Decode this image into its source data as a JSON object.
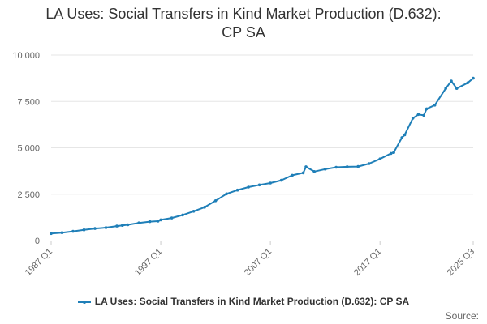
{
  "title_line1": "LA Uses: Social Transfers in Kind Market Production (D.632):",
  "title_line2": "CP SA",
  "source_label": "Source:",
  "colors": {
    "series": "#1f7fb8",
    "grid": "#e6e6e6",
    "axis_text": "#666666"
  },
  "chart_data": {
    "type": "line",
    "title": "LA Uses: Social Transfers in Kind Market Production (D.632): CP SA",
    "xlabel": "",
    "ylabel": "",
    "ylim": [
      0,
      10000
    ],
    "grid": true,
    "legend_position": "bottom",
    "y_ticks": [
      {
        "value": 0,
        "label": "0"
      },
      {
        "value": 2500,
        "label": "2 500"
      },
      {
        "value": 5000,
        "label": "5 000"
      },
      {
        "value": 7500,
        "label": "7 500"
      },
      {
        "value": 10000,
        "label": "10 000"
      }
    ],
    "x_ticks": [
      "1987 Q1",
      "1997 Q1",
      "2007 Q1",
      "2017 Q1",
      "2025 Q3"
    ],
    "series": [
      {
        "name": "LA Uses: Social Transfers in Kind Market Production (D.632): CP SA",
        "x": [
          "1987 Q1",
          "1988 Q1",
          "1989 Q1",
          "1990 Q1",
          "1991 Q1",
          "1992 Q1",
          "1993 Q1",
          "1993 Q3",
          "1994 Q1",
          "1995 Q1",
          "1996 Q1",
          "1996 Q4",
          "1997 Q1",
          "1998 Q1",
          "1999 Q1",
          "2000 Q1",
          "2001 Q1",
          "2002 Q1",
          "2003 Q1",
          "2004 Q1",
          "2005 Q1",
          "2006 Q1",
          "2007 Q1",
          "2008 Q1",
          "2009 Q1",
          "2010 Q1",
          "2010 Q2",
          "2011 Q1",
          "2012 Q1",
          "2013 Q1",
          "2014 Q1",
          "2015 Q1",
          "2016 Q1",
          "2017 Q1",
          "2018 Q1",
          "2018 Q2",
          "2019 Q1",
          "2019 Q2",
          "2020 Q1",
          "2020 Q3",
          "2021 Q1",
          "2021 Q2",
          "2022 Q1",
          "2023 Q1",
          "2023 Q3",
          "2024 Q1",
          "2025 Q1",
          "2025 Q3"
        ],
        "values": [
          380,
          430,
          500,
          580,
          650,
          700,
          780,
          820,
          850,
          950,
          1020,
          1050,
          1120,
          1220,
          1380,
          1580,
          1800,
          2150,
          2520,
          2720,
          2880,
          3000,
          3100,
          3250,
          3520,
          3650,
          3980,
          3720,
          3850,
          3950,
          3980,
          3990,
          4150,
          4400,
          4700,
          4750,
          5550,
          5700,
          6600,
          6800,
          6750,
          7100,
          7300,
          8200,
          8600,
          8200,
          8500,
          8750
        ]
      }
    ]
  }
}
